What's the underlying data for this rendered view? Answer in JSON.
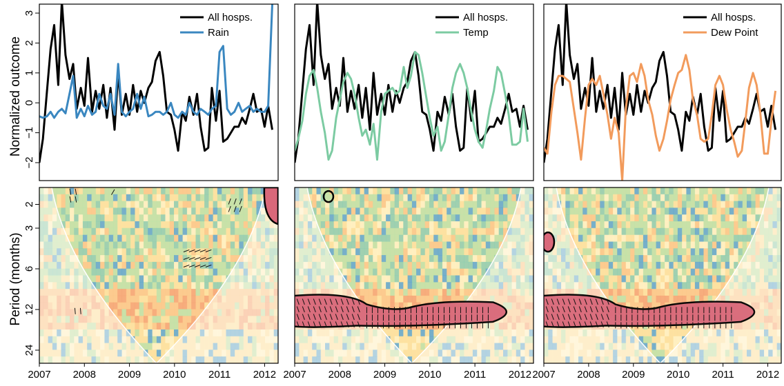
{
  "figure": {
    "ylabel_top": "Normalized outcome",
    "ylabel_bottom": "Period (months)"
  },
  "colors": {
    "all_hosps": "#000000",
    "rain": "#3a87c0",
    "temp": "#7ccba2",
    "dew_point": "#f29b5c",
    "significance_fill": "#d9687a",
    "cone_edge": "#ffffff",
    "wavelet_palette": [
      "#fff3c4",
      "#fde3a0",
      "#fbc98b",
      "#f6a676",
      "#bfe3a8",
      "#8fcfb1",
      "#5fa8cf"
    ]
  },
  "x_ticks": [
    "2007",
    "2008",
    "2009",
    "2010",
    "2011",
    "2012"
  ],
  "y_ticks_top": [
    "−2",
    "−1",
    "0",
    "1",
    "2",
    "3"
  ],
  "y_ticks_bottom": [
    "2",
    "3",
    "6",
    "12",
    "24"
  ],
  "chart_data": [
    {
      "type": "line",
      "panel": "rain",
      "x_range": [
        2007,
        2012.3
      ],
      "ylim": [
        -2.6,
        3.3
      ],
      "series": [
        {
          "name": "All hosps.",
          "color": "#000000",
          "x": [
            2007.0,
            2007.08,
            2007.17,
            2007.25,
            2007.33,
            2007.42,
            2007.5,
            2007.58,
            2007.67,
            2007.75,
            2007.83,
            2007.92,
            2008.0,
            2008.08,
            2008.17,
            2008.25,
            2008.33,
            2008.42,
            2008.5,
            2008.58,
            2008.67,
            2008.75,
            2008.83,
            2008.92,
            2009.0,
            2009.08,
            2009.17,
            2009.25,
            2009.33,
            2009.42,
            2009.5,
            2009.58,
            2009.67,
            2009.75,
            2009.83,
            2009.92,
            2010.0,
            2010.08,
            2010.17,
            2010.25,
            2010.33,
            2010.42,
            2010.5,
            2010.58,
            2010.67,
            2010.75,
            2010.83,
            2010.92,
            2011.0,
            2011.08,
            2011.17,
            2011.25,
            2011.33,
            2011.42,
            2011.5,
            2011.58,
            2011.67,
            2011.75,
            2011.83,
            2011.92,
            2012.0,
            2012.08,
            2012.17
          ],
          "values": [
            -2.0,
            -1.2,
            0.4,
            1.8,
            2.6,
            0.6,
            3.4,
            1.6,
            0.8,
            1.3,
            -0.2,
            0.5,
            -0.1,
            1.5,
            -0.3,
            0.4,
            -0.2,
            0.6,
            -0.5,
            0.5,
            -0.9,
            1.0,
            -0.4,
            0.3,
            -0.4,
            0.6,
            -0.3,
            0.4,
            0.0,
            0.5,
            0.7,
            1.4,
            1.7,
            0.9,
            -0.3,
            -0.4,
            -0.9,
            -1.6,
            -0.3,
            -0.6,
            0.2,
            -0.4,
            0.3,
            -0.8,
            -1.6,
            -1.5,
            0.5,
            -0.6,
            0.4,
            -1.3,
            -1.2,
            -1.0,
            -0.8,
            -0.8,
            -0.5,
            -0.7,
            -0.2,
            0.3,
            -0.3,
            -0.2,
            -0.8,
            -0.1,
            -0.9
          ]
        },
        {
          "name": "Rain",
          "color": "#3a87c0",
          "x": [
            2007.0,
            2007.08,
            2007.17,
            2007.25,
            2007.33,
            2007.42,
            2007.5,
            2007.58,
            2007.67,
            2007.75,
            2007.83,
            2007.92,
            2008.0,
            2008.08,
            2008.17,
            2008.25,
            2008.33,
            2008.42,
            2008.5,
            2008.58,
            2008.67,
            2008.75,
            2008.83,
            2008.92,
            2009.0,
            2009.08,
            2009.17,
            2009.25,
            2009.33,
            2009.42,
            2009.5,
            2009.58,
            2009.67,
            2009.75,
            2009.83,
            2009.92,
            2010.0,
            2010.08,
            2010.17,
            2010.25,
            2010.33,
            2010.42,
            2010.5,
            2010.58,
            2010.67,
            2010.75,
            2010.83,
            2010.92,
            2011.0,
            2011.08,
            2011.17,
            2011.25,
            2011.33,
            2011.42,
            2011.5,
            2011.58,
            2011.67,
            2011.75,
            2011.83,
            2011.92,
            2012.0,
            2012.08,
            2012.17
          ],
          "values": [
            -0.45,
            -0.5,
            -0.45,
            -0.3,
            -0.5,
            -0.3,
            -0.2,
            -0.35,
            0.3,
            0.9,
            -0.5,
            -0.2,
            -0.45,
            -0.1,
            -0.4,
            -0.3,
            0.3,
            -0.1,
            -0.2,
            0.3,
            -0.4,
            1.3,
            -0.3,
            -0.45,
            -0.3,
            -0.2,
            0.3,
            -0.2,
            0.2,
            -0.45,
            -0.4,
            -0.3,
            -0.3,
            -0.4,
            -0.3,
            0.0,
            -0.4,
            -0.5,
            -0.3,
            -0.4,
            0.0,
            -0.3,
            -0.4,
            -0.2,
            -0.3,
            -0.4,
            -0.2,
            -0.1,
            1.7,
            1.9,
            -0.2,
            -0.4,
            -0.3,
            0.0,
            -0.3,
            -0.2,
            -0.1,
            -0.3,
            -0.2,
            -0.3,
            -0.3,
            -0.1,
            3.3
          ]
        }
      ]
    },
    {
      "type": "line",
      "panel": "temp",
      "x_range": [
        2007,
        2012.3
      ],
      "ylim": [
        -2.6,
        3.3
      ],
      "series": [
        {
          "name": "All hosps.",
          "color": "#000000",
          "x": [
            2007.0,
            2007.08,
            2007.17,
            2007.25,
            2007.33,
            2007.42,
            2007.5,
            2007.58,
            2007.67,
            2007.75,
            2007.83,
            2007.92,
            2008.0,
            2008.08,
            2008.17,
            2008.25,
            2008.33,
            2008.42,
            2008.5,
            2008.58,
            2008.67,
            2008.75,
            2008.83,
            2008.92,
            2009.0,
            2009.08,
            2009.17,
            2009.25,
            2009.33,
            2009.42,
            2009.5,
            2009.58,
            2009.67,
            2009.75,
            2009.83,
            2009.92,
            2010.0,
            2010.08,
            2010.17,
            2010.25,
            2010.33,
            2010.42,
            2010.5,
            2010.58,
            2010.67,
            2010.75,
            2010.83,
            2010.92,
            2011.0,
            2011.08,
            2011.17,
            2011.25,
            2011.33,
            2011.42,
            2011.5,
            2011.58,
            2011.67,
            2011.75,
            2011.83,
            2011.92,
            2012.0,
            2012.08,
            2012.17
          ],
          "values": [
            -2.0,
            -1.2,
            0.4,
            1.8,
            2.6,
            0.6,
            3.4,
            1.6,
            0.8,
            1.3,
            -0.2,
            0.5,
            -0.1,
            1.5,
            -0.3,
            0.4,
            -0.2,
            0.6,
            -0.5,
            0.5,
            -0.9,
            1.0,
            -0.4,
            0.3,
            -0.4,
            0.6,
            -0.3,
            0.4,
            0.0,
            0.5,
            0.7,
            1.4,
            1.7,
            0.9,
            -0.3,
            -0.4,
            -0.9,
            -1.6,
            -0.3,
            -0.6,
            0.2,
            -0.4,
            0.3,
            -0.8,
            -1.6,
            -1.5,
            0.5,
            -0.6,
            0.4,
            -1.3,
            -1.2,
            -1.0,
            -0.8,
            -0.8,
            -0.5,
            -0.7,
            -0.2,
            0.3,
            -0.3,
            -0.2,
            -0.8,
            -0.1,
            -0.9
          ]
        },
        {
          "name": "Temp",
          "color": "#7ccba2",
          "x": [
            2007.0,
            2007.08,
            2007.17,
            2007.25,
            2007.33,
            2007.42,
            2007.5,
            2007.58,
            2007.67,
            2007.75,
            2007.83,
            2007.92,
            2008.0,
            2008.08,
            2008.17,
            2008.25,
            2008.33,
            2008.42,
            2008.5,
            2008.58,
            2008.67,
            2008.75,
            2008.83,
            2008.92,
            2009.0,
            2009.08,
            2009.17,
            2009.25,
            2009.33,
            2009.42,
            2009.5,
            2009.58,
            2009.67,
            2009.75,
            2009.83,
            2009.92,
            2010.0,
            2010.08,
            2010.17,
            2010.25,
            2010.33,
            2010.42,
            2010.5,
            2010.58,
            2010.67,
            2010.75,
            2010.83,
            2010.92,
            2011.0,
            2011.08,
            2011.17,
            2011.25,
            2011.33,
            2011.42,
            2011.5,
            2011.58,
            2011.67,
            2011.75,
            2011.83,
            2011.92,
            2012.0,
            2012.08,
            2012.17
          ],
          "values": [
            -1.6,
            -1.2,
            -0.6,
            0.3,
            0.9,
            1.1,
            0.5,
            -0.3,
            -1.0,
            -1.9,
            -1.6,
            -0.5,
            0.1,
            0.7,
            1.0,
            0.8,
            0.3,
            -0.5,
            -1.1,
            -0.9,
            -1.4,
            -0.7,
            -1.9,
            -0.3,
            0.3,
            0.4,
            0.5,
            0.3,
            0.4,
            1.2,
            0.5,
            0.9,
            1.7,
            1.6,
            1.0,
            0.2,
            -0.5,
            -1.1,
            -0.8,
            -1.6,
            -1.3,
            -0.4,
            0.5,
            1.0,
            1.3,
            1.0,
            0.5,
            -0.3,
            -0.9,
            -1.3,
            -1.5,
            -0.9,
            -0.2,
            0.4,
            1.2,
            1.0,
            0.3,
            -0.4,
            -1.4,
            -1.4,
            -1.3,
            -0.2,
            -1.3
          ]
        }
      ]
    },
    {
      "type": "line",
      "panel": "dew_point",
      "x_range": [
        2007,
        2012.3
      ],
      "ylim": [
        -2.6,
        3.3
      ],
      "series": [
        {
          "name": "All hosps.",
          "color": "#000000",
          "x": [
            2007.0,
            2007.08,
            2007.17,
            2007.25,
            2007.33,
            2007.42,
            2007.5,
            2007.58,
            2007.67,
            2007.75,
            2007.83,
            2007.92,
            2008.0,
            2008.08,
            2008.17,
            2008.25,
            2008.33,
            2008.42,
            2008.5,
            2008.58,
            2008.67,
            2008.75,
            2008.83,
            2008.92,
            2009.0,
            2009.08,
            2009.17,
            2009.25,
            2009.33,
            2009.42,
            2009.5,
            2009.58,
            2009.67,
            2009.75,
            2009.83,
            2009.92,
            2010.0,
            2010.08,
            2010.17,
            2010.25,
            2010.33,
            2010.42,
            2010.5,
            2010.58,
            2010.67,
            2010.75,
            2010.83,
            2010.92,
            2011.0,
            2011.08,
            2011.17,
            2011.25,
            2011.33,
            2011.42,
            2011.5,
            2011.58,
            2011.67,
            2011.75,
            2011.83,
            2011.92,
            2012.0,
            2012.08,
            2012.17
          ],
          "values": [
            -2.0,
            -1.2,
            0.4,
            1.8,
            2.6,
            0.6,
            3.4,
            1.6,
            0.8,
            1.3,
            -0.2,
            0.5,
            -0.1,
            1.5,
            -0.3,
            0.4,
            -0.2,
            0.6,
            -0.5,
            0.5,
            -0.9,
            1.0,
            -0.4,
            0.3,
            -0.4,
            0.6,
            -0.3,
            0.4,
            0.0,
            0.5,
            0.7,
            1.4,
            1.7,
            0.9,
            -0.3,
            -0.4,
            -0.9,
            -1.6,
            -0.3,
            -0.6,
            0.2,
            -0.4,
            0.3,
            -0.8,
            -1.6,
            -1.5,
            0.5,
            -0.6,
            0.4,
            -1.3,
            -1.2,
            -1.0,
            -0.8,
            -0.8,
            -0.5,
            -0.7,
            -0.2,
            0.3,
            -0.3,
            -0.2,
            -0.8,
            -0.1,
            -0.9
          ]
        },
        {
          "name": "Dew Point",
          "color": "#f29b5c",
          "x": [
            2007.0,
            2007.08,
            2007.17,
            2007.25,
            2007.33,
            2007.42,
            2007.5,
            2007.58,
            2007.67,
            2007.75,
            2007.83,
            2007.92,
            2008.0,
            2008.08,
            2008.17,
            2008.25,
            2008.33,
            2008.42,
            2008.5,
            2008.58,
            2008.67,
            2008.75,
            2008.83,
            2008.92,
            2009.0,
            2009.08,
            2009.17,
            2009.25,
            2009.33,
            2009.42,
            2009.5,
            2009.58,
            2009.67,
            2009.75,
            2009.83,
            2009.92,
            2010.0,
            2010.08,
            2010.17,
            2010.25,
            2010.33,
            2010.42,
            2010.5,
            2010.58,
            2010.67,
            2010.75,
            2010.83,
            2010.92,
            2011.0,
            2011.08,
            2011.17,
            2011.25,
            2011.33,
            2011.42,
            2011.5,
            2011.58,
            2011.67,
            2011.75,
            2011.83,
            2011.92,
            2012.0,
            2012.08,
            2012.17
          ],
          "values": [
            -1.5,
            -1.7,
            -0.3,
            0.6,
            0.9,
            0.9,
            0.8,
            0.7,
            -0.2,
            -1.0,
            -1.9,
            -0.5,
            0.6,
            0.8,
            0.6,
            0.9,
            0.3,
            -0.4,
            -1.2,
            -0.5,
            -1.0,
            -2.6,
            -0.2,
            0.9,
            1.0,
            0.7,
            1.3,
            0.9,
            0.1,
            -0.4,
            -1.1,
            -1.6,
            -1.2,
            -0.6,
            0.1,
            0.6,
            1.0,
            1.1,
            1.6,
            1.1,
            0.1,
            -0.4,
            -1.2,
            -1.3,
            -1.2,
            -0.4,
            0.6,
            0.9,
            0.6,
            -0.2,
            -0.9,
            -1.3,
            -1.8,
            -1.6,
            -0.6,
            0.5,
            1.0,
            0.6,
            -0.3,
            -1.7,
            -1.7,
            -0.6,
            0.4
          ]
        }
      ]
    },
    {
      "type": "heatmap",
      "panel": "rain-wavelet",
      "x_range": [
        2007,
        2012.3
      ],
      "y_scale": "log2",
      "ylim": [
        1.5,
        30
      ],
      "significant_regions": 4
    },
    {
      "type": "heatmap",
      "panel": "temp-wavelet",
      "x_range": [
        2007,
        2012.3
      ],
      "y_scale": "log2",
      "ylim": [
        1.5,
        30
      ],
      "significant_regions": 2
    },
    {
      "type": "heatmap",
      "panel": "dew-point-wavelet",
      "x_range": [
        2007,
        2012.3
      ],
      "y_scale": "log2",
      "ylim": [
        1.5,
        30
      ],
      "significant_regions": 2
    }
  ]
}
